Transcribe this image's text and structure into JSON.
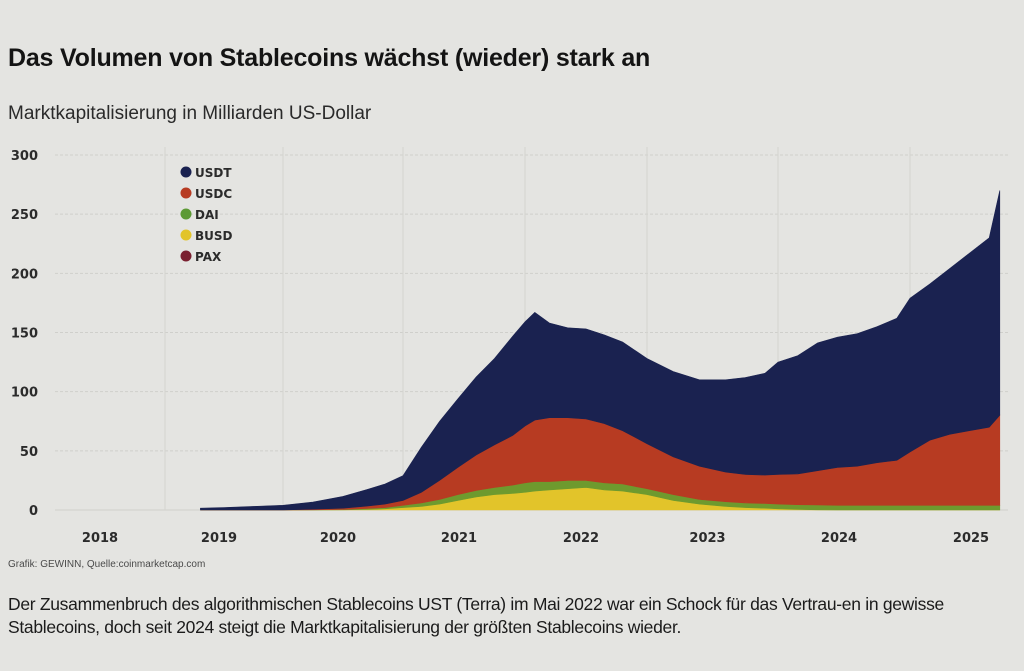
{
  "header": {
    "title": "Das Volumen von Stablecoins wächst (wieder) stark an",
    "subtitle": "Marktkapitalisierung in Milliarden US-Dollar"
  },
  "footer": {
    "source": "Grafik: GEWINN, Quelle:coinmarketcap.com",
    "caption": "Der Zusammenbruch des algorithmischen Stablecoins UST (Terra) im Mai 2022 war ein Schock für das Vertrau-en in gewisse Stablecoins, doch seit 2024 steigt die Marktkapitalisierung der größten Stablecoins wieder."
  },
  "chart_data": {
    "type": "area",
    "stacked": true,
    "title": "Das Volumen von Stablecoins wächst (wieder) stark an",
    "subtitle": "Marktkapitalisierung in Milliarden US-Dollar",
    "xlabel": "",
    "ylabel": "Milliarden US-Dollar",
    "ylim": [
      0,
      300
    ],
    "yticks": [
      0,
      50,
      100,
      150,
      200,
      250,
      300
    ],
    "xlim": [
      2018.0,
      2025.7
    ],
    "xticks": [
      "2018",
      "2019",
      "2020",
      "2021",
      "2022",
      "2023",
      "2024",
      "2025"
    ],
    "grid": true,
    "legend_position": "top-left",
    "x": [
      2019.3,
      2019.5,
      2019.75,
      2020.0,
      2020.25,
      2020.5,
      2020.7,
      2020.85,
      2021.0,
      2021.15,
      2021.3,
      2021.45,
      2021.6,
      2021.75,
      2021.9,
      2022.0,
      2022.08,
      2022.2,
      2022.35,
      2022.5,
      2022.65,
      2022.8,
      2023.0,
      2023.2,
      2023.4,
      2023.6,
      2023.75,
      2023.9,
      2024.0,
      2024.15,
      2024.3,
      2024.45,
      2024.6,
      2024.75,
      2024.9,
      2025.0,
      2025.15,
      2025.3,
      2025.45,
      2025.6,
      2025.68
    ],
    "series": [
      {
        "name": "BUSD",
        "color": "#e2c42a",
        "values": [
          0,
          0,
          0,
          0,
          0.1,
          0.2,
          0.5,
          1,
          2,
          3,
          5,
          8,
          11,
          13,
          14,
          15,
          16,
          17,
          18,
          19,
          17,
          16,
          13,
          8,
          5,
          3,
          2,
          1.5,
          1,
          0.5,
          0.2,
          0,
          0,
          0,
          0,
          0,
          0,
          0,
          0,
          0,
          0
        ]
      },
      {
        "name": "DAI",
        "color": "#6e9a2e",
        "values": [
          0,
          0,
          0,
          0,
          0.1,
          0.3,
          0.8,
          1,
          2,
          3,
          4,
          5,
          5.5,
          6,
          7,
          8,
          8,
          7,
          7,
          6,
          6,
          6,
          5,
          5,
          4,
          4,
          4,
          4,
          4,
          4,
          4,
          4,
          4,
          4,
          4,
          4,
          4,
          4,
          4,
          4,
          4
        ]
      },
      {
        "name": "USDC",
        "color": "#b73b22",
        "values": [
          0,
          0,
          0,
          0,
          0.5,
          1,
          2,
          3,
          4,
          9,
          16,
          23,
          30,
          36,
          42,
          48,
          52,
          54,
          53,
          52,
          50,
          45,
          38,
          32,
          28,
          25,
          24,
          24,
          25,
          26,
          29,
          32,
          33,
          36,
          38,
          45,
          55,
          60,
          63,
          66,
          76
        ]
      },
      {
        "name": "USDT",
        "color": "#1a2250",
        "values": [
          1.5,
          2,
          3,
          4,
          6,
          10,
          14,
          17,
          21,
          38,
          50,
          58,
          66,
          73,
          84,
          88,
          91,
          80,
          76,
          76,
          75,
          75,
          72,
          72,
          73,
          78,
          82,
          86,
          95,
          100,
          108,
          110,
          112,
          115,
          120,
          130,
          132,
          140,
          150,
          160,
          190
        ]
      },
      {
        "name": "PAX",
        "color": "#7a2030",
        "values": [
          0,
          0,
          0,
          0,
          0,
          0,
          0,
          0,
          0,
          0,
          0,
          0,
          0,
          0,
          0,
          0,
          0,
          0,
          0,
          0,
          0,
          0,
          0,
          0,
          0,
          0,
          0,
          0,
          0,
          0,
          0,
          0,
          0,
          0,
          0,
          0,
          0,
          0,
          0,
          0,
          0
        ]
      }
    ],
    "legend": [
      {
        "name": "USDT",
        "color": "#1a2250"
      },
      {
        "name": "USDC",
        "color": "#b73b22"
      },
      {
        "name": "DAI",
        "color": "#5d9a35"
      },
      {
        "name": "BUSD",
        "color": "#e2c42a"
      },
      {
        "name": "PAX",
        "color": "#7a2030"
      }
    ]
  }
}
